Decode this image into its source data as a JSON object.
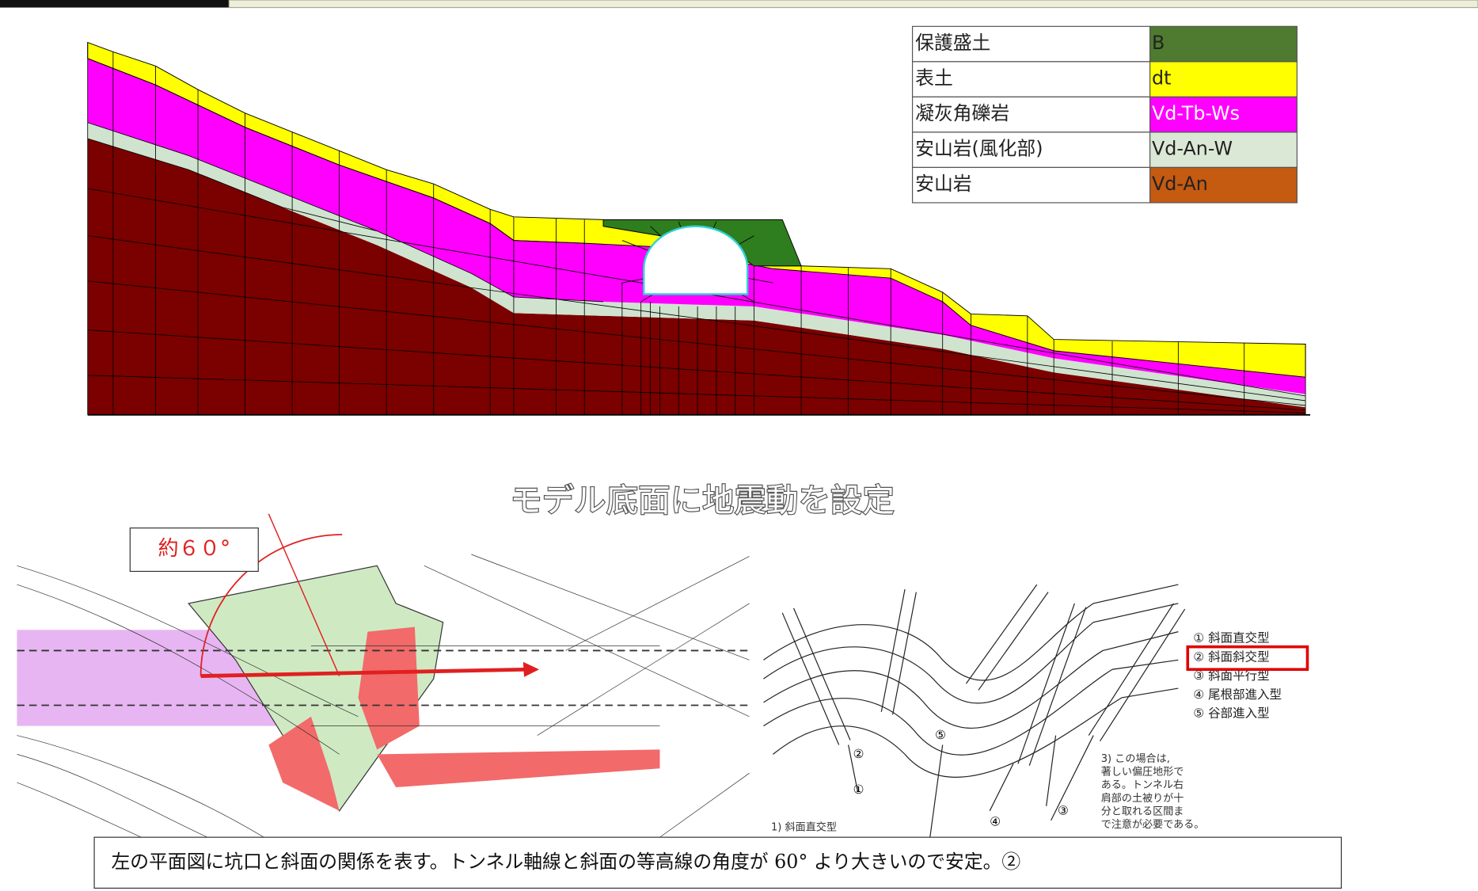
{
  "legend": {
    "rows": [
      {
        "name": "保護盛土",
        "code": "B",
        "color": "#4f7b30"
      },
      {
        "name": "表土",
        "code": "dt",
        "color": "#ffff00"
      },
      {
        "name": "凝灰角礫岩",
        "code": "Vd-Tb-Ws",
        "color": "#ff00ff"
      },
      {
        "name": "安山岩(風化部)",
        "code": "Vd-An-W",
        "color": "#dce8d6"
      },
      {
        "name": "安山岩",
        "code": "Vd-An",
        "color": "#c55a11"
      }
    ]
  },
  "heading": "モデル底面に地震動を設定",
  "plan": {
    "angle_label": "約６０°"
  },
  "diagram": {
    "types": [
      "① 斜面直交型",
      "② 斜面斜交型",
      "③ 斜面平行型",
      "④ 尾根部進入型",
      "⑤ 谷部進入型"
    ],
    "markers": [
      "①",
      "②",
      "③",
      "④",
      "⑤"
    ],
    "caption": "1) 斜面直交型",
    "note": [
      "3) この場合は,",
      "著しい偏圧地形で",
      "ある。トンネル右",
      "肩部の土被りが十",
      "分と取れる区間ま",
      "で注意が必要である。"
    ]
  },
  "footer": "左の平面図に坑口と斜面の関係を表す。トンネル軸線と斜面の等高線の角度が 60° より大きいので安定。②"
}
